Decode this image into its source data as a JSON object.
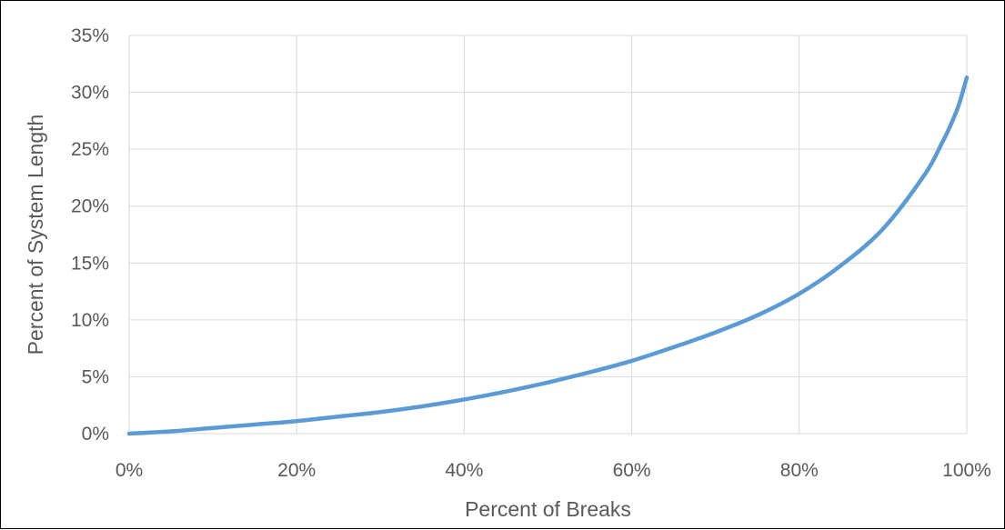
{
  "chart_data": {
    "type": "line",
    "title": "",
    "xlabel": "Percent of Breaks",
    "ylabel": "Percent of System Length",
    "xlim": [
      0,
      100
    ],
    "ylim": [
      0,
      35
    ],
    "x_unit": "%",
    "y_unit": "%",
    "x_ticks": [
      "0%",
      "20%",
      "40%",
      "60%",
      "80%",
      "100%"
    ],
    "y_ticks": [
      "0%",
      "5%",
      "10%",
      "15%",
      "20%",
      "25%",
      "30%",
      "35%"
    ],
    "grid": true,
    "legend": "none",
    "series_color": "#5b9bd5",
    "series": [
      {
        "x": [
          0,
          5,
          10,
          15,
          20,
          25,
          30,
          35,
          40,
          45,
          50,
          55,
          60,
          65,
          70,
          75,
          80,
          85,
          90,
          95,
          97,
          98,
          99,
          99.5,
          100
        ],
        "y": [
          0,
          0.2,
          0.5,
          0.8,
          1.1,
          1.5,
          1.9,
          2.4,
          3.0,
          3.7,
          4.5,
          5.4,
          6.4,
          7.6,
          8.9,
          10.4,
          12.3,
          14.8,
          18.0,
          22.8,
          25.5,
          27.0,
          28.8,
          30.0,
          31.3
        ]
      }
    ]
  }
}
